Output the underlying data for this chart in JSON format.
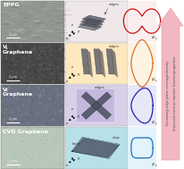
{
  "rows": [
    {
      "label": "EPPG",
      "subscript": "",
      "cv_color": "#cc1111",
      "cv_bg": "#f5e0e0",
      "micro_color": "#909890",
      "diagram_bg": "#f0e8e8",
      "diagram_type": "eppg"
    },
    {
      "label": "V",
      "subscript": "1",
      "label2": "Graphene",
      "cv_color": "#e07020",
      "cv_bg": "#fde8c8",
      "micro_color": "#484848",
      "diagram_bg": "#fde8c0",
      "diagram_type": "v1"
    },
    {
      "label": "V",
      "subscript": "2",
      "label2": "Graphene",
      "cv_color": "#2222aa",
      "cv_bg": "#d0d0f0",
      "micro_color": "#6a7080",
      "diagram_bg": "#d8d0e8",
      "diagram_type": "v2"
    },
    {
      "label": "CVD Graphene",
      "subscript": "",
      "cv_color": "#1a70c0",
      "cv_bg": "#c8e8f8",
      "micro_color": "#b8c8b8",
      "diagram_bg": "#b8e0e8",
      "diagram_type": "cvd"
    }
  ],
  "arrow_color": "#f0b0bc",
  "arrow_edge_color": "#e890a0",
  "arrow_text1": "Increasing edge plane coverage/density",
  "arrow_text2": "Improved electron transfer kinetics/properties",
  "background_color": "#ffffff",
  "fig_width": 2.06,
  "fig_height": 1.89
}
